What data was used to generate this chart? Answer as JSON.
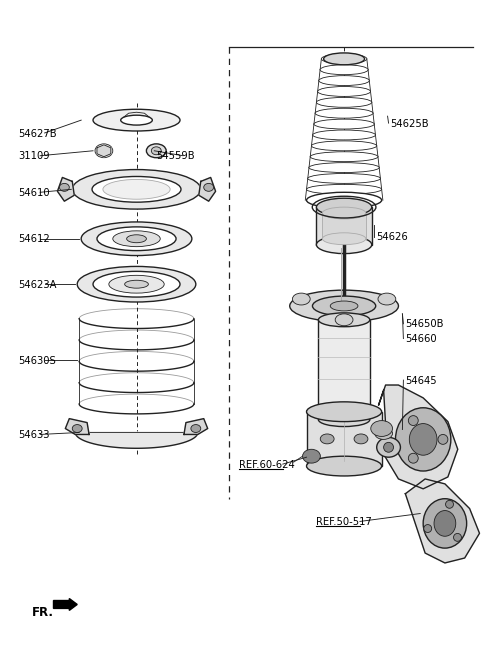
{
  "bg_color": "#ffffff",
  "line_color": "#222222",
  "figsize": [
    4.8,
    6.42
  ],
  "dpi": 100,
  "labels_left": [
    [
      "54627B",
      8,
      125
    ],
    [
      "31109",
      8,
      148
    ],
    [
      "54559B",
      148,
      148
    ],
    [
      "54610",
      8,
      185
    ],
    [
      "54612",
      8,
      232
    ],
    [
      "54623A",
      8,
      278
    ],
    [
      "54630S",
      8,
      355
    ],
    [
      "54633",
      8,
      430
    ]
  ],
  "labels_right": [
    [
      "54625B",
      385,
      115
    ],
    [
      "54626",
      370,
      230
    ],
    [
      "54650B",
      400,
      318
    ],
    [
      "54660",
      400,
      333
    ],
    [
      "54645",
      400,
      375
    ]
  ],
  "labels_ref": [
    [
      "REF.60-624",
      232,
      460,
      300,
      453
    ],
    [
      "REF.50-517",
      310,
      518,
      415,
      510
    ]
  ],
  "fr_label": [
    22,
    610
  ]
}
